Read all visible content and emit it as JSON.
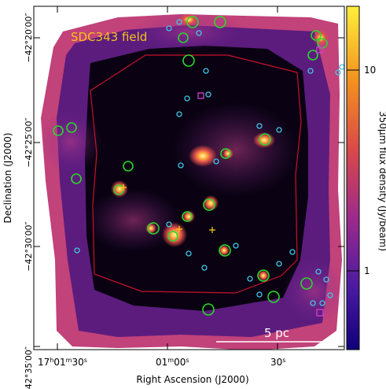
{
  "figure": {
    "field_label": "SDC343 field",
    "scale_bar_label": "5 pc",
    "x_axis_label": "Right Ascension (J2000)",
    "y_axis_label": "Declination (J2000)",
    "colorbar_label": "350µm flux density (Jy/beam)",
    "colorbar_scale": "log",
    "colorbar_ticks": [
      "10",
      "1"
    ],
    "x_ticks": [
      {
        "h": "17",
        "hs": "h",
        "m": "01",
        "ms": "m",
        "s": "30",
        "ss": "s"
      },
      {
        "h": "",
        "hs": "",
        "m": "01",
        "ms": "m",
        "s": "00",
        "ss": "s"
      },
      {
        "h": "",
        "hs": "",
        "m": "",
        "ms": "",
        "s": "30",
        "ss": "s"
      }
    ],
    "y_ticks": [
      "−42°20′00″",
      "−42°25′00″",
      "−42°30′00″",
      "−42°35′00″"
    ],
    "colors": {
      "background": "#000000",
      "boundary": "#c8102e",
      "green_markers": "#2bd82b",
      "cyan_markers": "#3fc7e8",
      "magenta_markers": "#d13dd6",
      "yellow_markers": "#ffd21a"
    }
  }
}
